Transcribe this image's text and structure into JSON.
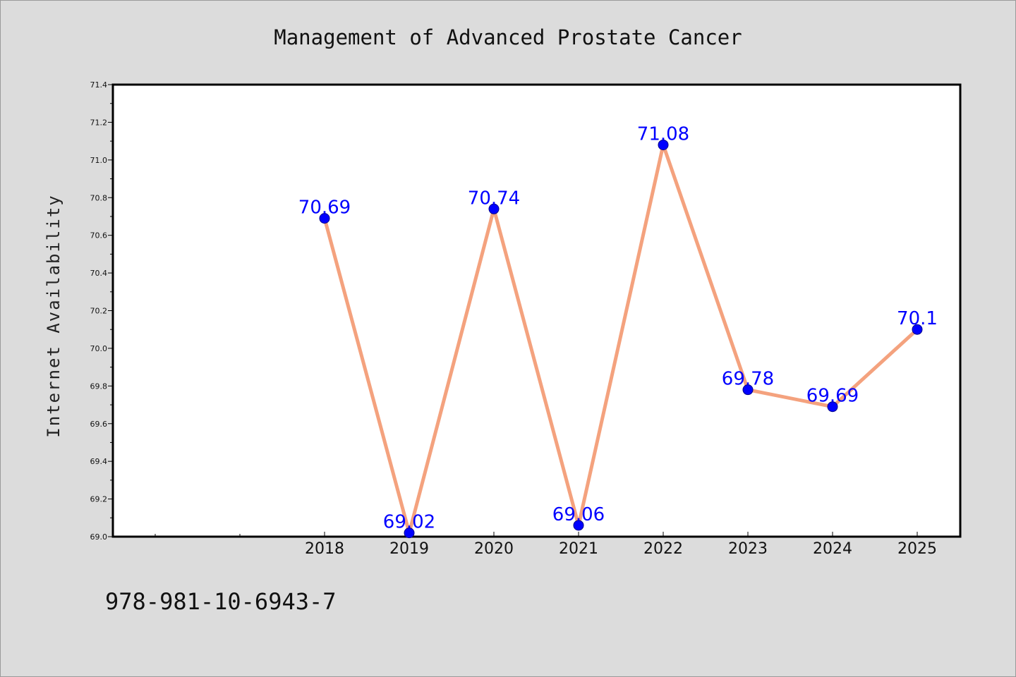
{
  "footer": {
    "isbn": "978-981-10-6943-7"
  },
  "colors": {
    "background": "#dcdcdc",
    "plot_background": "#ffffff",
    "line": "#f4a27e",
    "marker_fill": "#0000ff",
    "marker_edge": "#00008b",
    "data_label": "#0000ff"
  },
  "chart_data": {
    "type": "line",
    "title": "Management of Advanced Prostate Cancer",
    "xlabel": "",
    "ylabel": "Internet Availability",
    "x": [
      "2018",
      "2019",
      "2020",
      "2021",
      "2022",
      "2023",
      "2024",
      "2025"
    ],
    "series": [
      {
        "values": [
          70.69,
          69.02,
          70.74,
          69.06,
          71.08,
          69.78,
          69.69,
          70.1
        ],
        "labels": [
          "70.69",
          "69.02",
          "70.74",
          "69.06",
          "71.08",
          "69.78",
          "69.69",
          "70.1"
        ]
      }
    ],
    "ylim": [
      69.0,
      71.4
    ],
    "yticks": [
      "69.0",
      "69.2",
      "69.4",
      "69.6",
      "69.8",
      "70.0",
      "70.2",
      "70.4",
      "70.6",
      "70.8",
      "71.0",
      "71.2",
      "71.4"
    ],
    "grid": false,
    "legend": "none",
    "markers": true,
    "data_labels": true
  }
}
